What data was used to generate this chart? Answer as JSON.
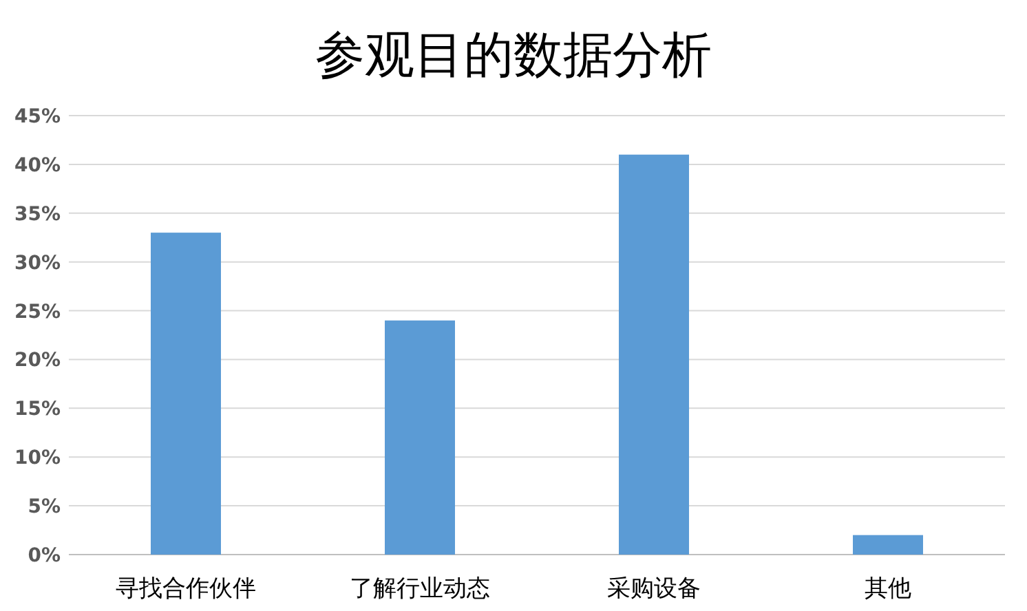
{
  "chart_data": {
    "type": "bar",
    "title": "参观目的数据分析",
    "categories": [
      "寻找合作伙伴",
      "了解行业动态",
      "采购设备",
      "其他"
    ],
    "values": [
      33,
      24,
      41,
      2
    ],
    "color": "#5b9bd5",
    "ylim": [
      0,
      45
    ],
    "yticks": [
      {
        "value": 0,
        "label": "0%"
      },
      {
        "value": 5,
        "label": "5%"
      },
      {
        "value": 10,
        "label": "10%"
      },
      {
        "value": 15,
        "label": "15%"
      },
      {
        "value": 20,
        "label": "20%"
      },
      {
        "value": 25,
        "label": "25%"
      },
      {
        "value": 30,
        "label": "30%"
      },
      {
        "value": 35,
        "label": "35%"
      },
      {
        "value": 40,
        "label": "40%"
      },
      {
        "value": 45,
        "label": "45%"
      }
    ],
    "grid": "y"
  }
}
